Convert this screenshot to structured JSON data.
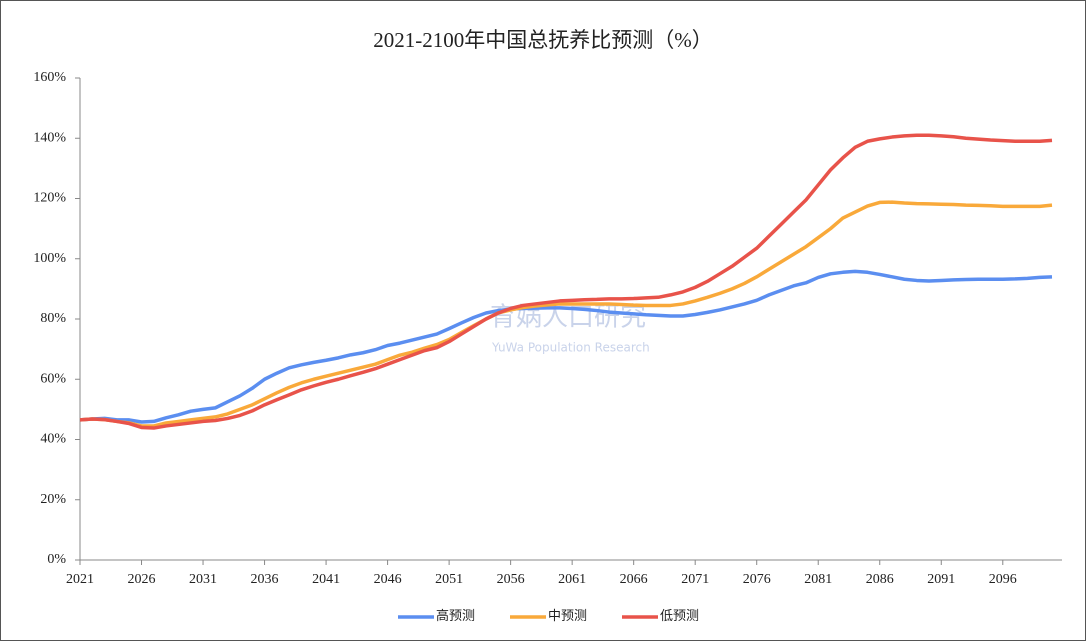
{
  "chart_data": {
    "type": "line",
    "title": "2021-2100年中国总抚养比预测（%）",
    "watermark": [
      "育娲人口研究",
      "YuWa Population Research"
    ],
    "x": [
      2021,
      2022,
      2023,
      2024,
      2025,
      2026,
      2027,
      2028,
      2029,
      2030,
      2031,
      2032,
      2033,
      2034,
      2035,
      2036,
      2037,
      2038,
      2039,
      2040,
      2041,
      2042,
      2043,
      2044,
      2045,
      2046,
      2047,
      2048,
      2049,
      2050,
      2051,
      2052,
      2053,
      2054,
      2055,
      2056,
      2057,
      2058,
      2059,
      2060,
      2061,
      2062,
      2063,
      2064,
      2065,
      2066,
      2067,
      2068,
      2069,
      2070,
      2071,
      2072,
      2073,
      2074,
      2075,
      2076,
      2077,
      2078,
      2079,
      2080,
      2081,
      2082,
      2083,
      2084,
      2085,
      2086,
      2087,
      2088,
      2089,
      2090,
      2091,
      2092,
      2093,
      2094,
      2095,
      2096,
      2097,
      2098,
      2099,
      2100
    ],
    "xlim": [
      2021,
      2100
    ],
    "xticks": [
      2021,
      2026,
      2031,
      2036,
      2041,
      2046,
      2051,
      2056,
      2061,
      2066,
      2071,
      2076,
      2081,
      2086,
      2091,
      2096
    ],
    "ylim": [
      0,
      160
    ],
    "yticks": [
      {
        "value": 0,
        "label": "0%"
      },
      {
        "value": 20,
        "label": "20%"
      },
      {
        "value": 40,
        "label": "40%"
      },
      {
        "value": 60,
        "label": "60%"
      },
      {
        "value": 80,
        "label": "80%"
      },
      {
        "value": 100,
        "label": "100%"
      },
      {
        "value": 120,
        "label": "120%"
      },
      {
        "value": 140,
        "label": "140%"
      },
      {
        "value": 160,
        "label": "160%"
      }
    ],
    "grid": false,
    "legend": "bottom",
    "series": [
      {
        "name": "高预测",
        "color": "#5b8ef0",
        "values": [
          46.5,
          46.8,
          47,
          46.5,
          46.5,
          45.8,
          46,
          47.2,
          48.2,
          49.4,
          50,
          50.5,
          52.5,
          54.5,
          57,
          60,
          62,
          63.8,
          64.8,
          65.6,
          66.3,
          67.1,
          68.1,
          68.8,
          69.8,
          71.2,
          72,
          73,
          74,
          75,
          76.8,
          78.7,
          80.5,
          82,
          82.8,
          83.3,
          83.5,
          83.6,
          83.7,
          83.7,
          83.5,
          83.2,
          82.8,
          82.3,
          82,
          81.7,
          81.4,
          81.2,
          81,
          81,
          81.5,
          82.2,
          83,
          84,
          85,
          86.2,
          88,
          89.5,
          91,
          92,
          93.8,
          95,
          95.5,
          95.8,
          95.5,
          94.8,
          94,
          93.2,
          92.8,
          92.6,
          92.8,
          93,
          93.1,
          93.2,
          93.2,
          93.2,
          93.3,
          93.5,
          93.8,
          94
        ]
      },
      {
        "name": "中预测",
        "color": "#f9a93a",
        "values": [
          46.5,
          46.8,
          46.6,
          46,
          45.5,
          44.5,
          44.5,
          45.5,
          46,
          46.5,
          47,
          47.5,
          48.5,
          50,
          51.5,
          53.5,
          55.5,
          57.3,
          58.8,
          60,
          61,
          62,
          63,
          64,
          65,
          66.5,
          68,
          69,
          70.3,
          71.5,
          73.2,
          75.5,
          77.8,
          80,
          82,
          83,
          83.8,
          84.3,
          84.7,
          85,
          85,
          85,
          85,
          85,
          84.8,
          84.6,
          84.5,
          84.5,
          84.5,
          85,
          86,
          87.2,
          88.5,
          90,
          91.8,
          94,
          96.5,
          99,
          101.5,
          104,
          107,
          110,
          113.5,
          115.5,
          117.5,
          118.7,
          118.8,
          118.5,
          118.3,
          118.2,
          118.1,
          118,
          117.8,
          117.7,
          117.6,
          117.4,
          117.4,
          117.4,
          117.4,
          117.8
        ]
      },
      {
        "name": "低预测",
        "color": "#e8534a",
        "values": [
          46.5,
          46.8,
          46.6,
          46,
          45.3,
          44,
          43.8,
          44.5,
          45,
          45.5,
          46,
          46.3,
          47,
          48,
          49.5,
          51.5,
          53.2,
          54.8,
          56.5,
          57.8,
          59,
          60,
          61.2,
          62.3,
          63.5,
          65,
          66.5,
          68,
          69.5,
          70.5,
          72.5,
          75,
          77.5,
          80,
          82,
          83.5,
          84.5,
          85,
          85.5,
          86,
          86.2,
          86.4,
          86.5,
          86.7,
          86.7,
          86.8,
          87,
          87.2,
          88,
          89,
          90.5,
          92.5,
          95,
          97.5,
          100.5,
          103.5,
          107.5,
          111.5,
          115.5,
          119.5,
          124.5,
          129.5,
          133.5,
          137,
          139,
          139.8,
          140.4,
          140.8,
          141,
          141,
          140.8,
          140.5,
          140,
          139.7,
          139.4,
          139.2,
          139,
          139,
          139,
          139.3
        ]
      }
    ]
  }
}
